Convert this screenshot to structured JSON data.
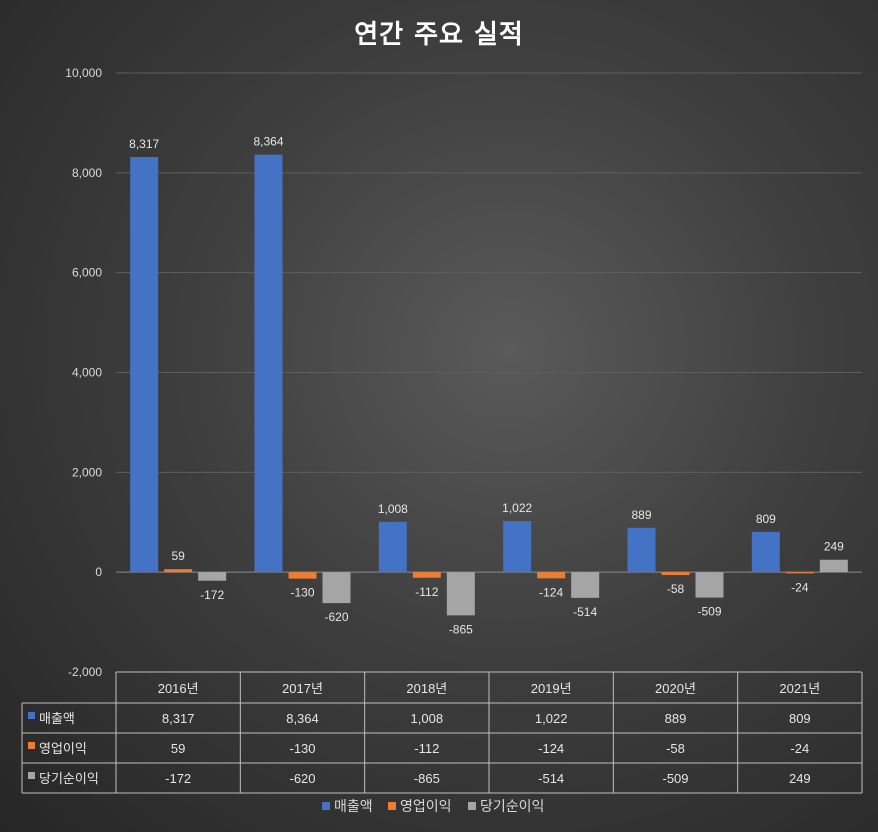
{
  "chart_data": {
    "type": "bar",
    "title": "연간 주요 실적",
    "categories": [
      "2016년",
      "2017년",
      "2018년",
      "2019년",
      "2020년",
      "2021년"
    ],
    "series": [
      {
        "name": "매출액",
        "values": [
          8317,
          8364,
          1008,
          1022,
          889,
          809
        ],
        "labels": [
          "8,317",
          "8,364",
          "1,008",
          "1,022",
          "889",
          "809"
        ],
        "color": "#4472c4"
      },
      {
        "name": "영업이익",
        "values": [
          59,
          -130,
          -112,
          -124,
          -58,
          -24
        ],
        "labels": [
          "59",
          "-130",
          "-112",
          "-124",
          "-58",
          "-24"
        ],
        "color": "#ed7d31"
      },
      {
        "name": "당기순이익",
        "values": [
          -172,
          -620,
          -865,
          -514,
          -509,
          249
        ],
        "labels": [
          "-172",
          "-620",
          "-865",
          "-514",
          "-509",
          "249"
        ],
        "color": "#a5a5a5"
      }
    ],
    "yticks": [
      "10,000",
      "8,000",
      "6,000",
      "4,000",
      "2,000",
      "0",
      "-2,000"
    ],
    "ylim": [
      -2000,
      10000
    ],
    "grid": true,
    "data_table": true,
    "legend_position": "bottom"
  }
}
